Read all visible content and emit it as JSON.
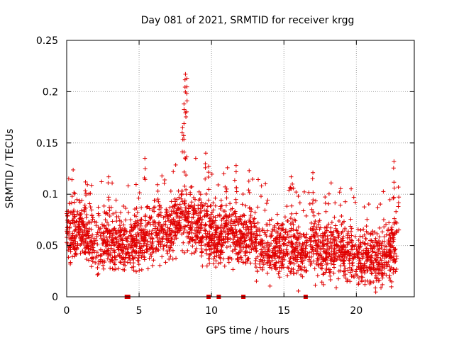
{
  "chart_data": {
    "type": "scatter",
    "title": "Day 081 of 2021, SRMTID for receiver krgg",
    "xlabel": "GPS time / hours",
    "ylabel": "SRMTID / TECUs",
    "xlim": [
      0,
      24
    ],
    "ylim": [
      0,
      0.25
    ],
    "x_ticks": [
      0,
      5,
      10,
      15,
      20
    ],
    "x_tick_labels": [
      "0",
      "5",
      "10",
      "15",
      "20"
    ],
    "y_ticks": [
      0,
      0.05,
      0.1,
      0.15,
      0.2,
      0.25
    ],
    "y_tick_labels": [
      "0",
      "0.05",
      "0.1",
      "0.15",
      "0.2",
      "0.25"
    ],
    "grid": true,
    "marker": "+",
    "color": "#e00000",
    "envelope": [
      {
        "x": 0.0,
        "mean": 0.062
      },
      {
        "x": 1.0,
        "mean": 0.066
      },
      {
        "x": 2.0,
        "mean": 0.052
      },
      {
        "x": 3.0,
        "mean": 0.055
      },
      {
        "x": 4.0,
        "mean": 0.052
      },
      {
        "x": 5.0,
        "mean": 0.055
      },
      {
        "x": 6.0,
        "mean": 0.06
      },
      {
        "x": 7.0,
        "mean": 0.063
      },
      {
        "x": 8.0,
        "mean": 0.078
      },
      {
        "x": 9.0,
        "mean": 0.072
      },
      {
        "x": 10.0,
        "mean": 0.06
      },
      {
        "x": 11.0,
        "mean": 0.062
      },
      {
        "x": 12.0,
        "mean": 0.06
      },
      {
        "x": 13.0,
        "mean": 0.055
      },
      {
        "x": 14.0,
        "mean": 0.045
      },
      {
        "x": 15.0,
        "mean": 0.05
      },
      {
        "x": 16.0,
        "mean": 0.045
      },
      {
        "x": 17.0,
        "mean": 0.048
      },
      {
        "x": 18.0,
        "mean": 0.047
      },
      {
        "x": 19.0,
        "mean": 0.045
      },
      {
        "x": 20.0,
        "mean": 0.04
      },
      {
        "x": 21.0,
        "mean": 0.038
      },
      {
        "x": 22.0,
        "mean": 0.042
      },
      {
        "x": 22.8,
        "mean": 0.05
      }
    ],
    "peaks": [
      {
        "x": 1.3,
        "y": 0.112
      },
      {
        "x": 2.9,
        "y": 0.117
      },
      {
        "x": 5.4,
        "y": 0.135
      },
      {
        "x": 6.3,
        "y": 0.103
      },
      {
        "x": 8.0,
        "y": 0.165
      },
      {
        "x": 8.1,
        "y": 0.188
      },
      {
        "x": 8.2,
        "y": 0.217
      },
      {
        "x": 8.3,
        "y": 0.213
      },
      {
        "x": 9.6,
        "y": 0.14
      },
      {
        "x": 9.8,
        "y": 0.127
      },
      {
        "x": 11.7,
        "y": 0.128
      },
      {
        "x": 12.6,
        "y": 0.123
      },
      {
        "x": 15.5,
        "y": 0.117
      },
      {
        "x": 17.0,
        "y": 0.121
      },
      {
        "x": 22.6,
        "y": 0.132
      },
      {
        "x": 22.9,
        "y": 0.107
      }
    ],
    "gap_markers_x": [
      4.15,
      4.25,
      9.8,
      10.5,
      12.2,
      16.5
    ]
  }
}
